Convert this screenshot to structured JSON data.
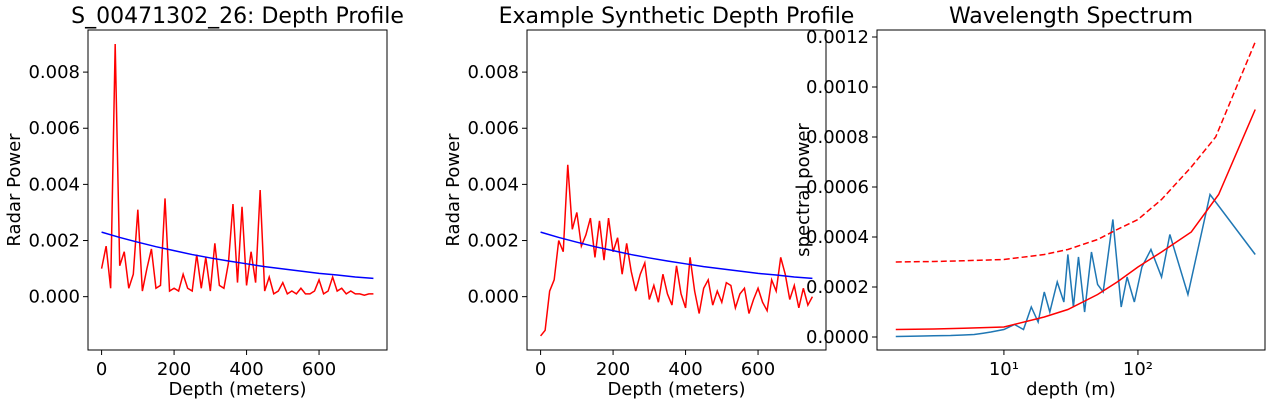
{
  "chart_data": [
    {
      "type": "line",
      "title": "S_00471302_26: Depth Profile",
      "xlabel": "Depth (meters)",
      "ylabel": "Radar Power",
      "xlim": [
        -37.5,
        787.5
      ],
      "xticks": [
        0,
        200,
        400,
        600
      ],
      "ylim": [
        -0.0019,
        0.0095
      ],
      "yticks": [
        {
          "value": 0,
          "label": "0.000"
        },
        {
          "value": 0.002,
          "label": "0.002"
        },
        {
          "value": 0.004,
          "label": "0.004"
        },
        {
          "value": 0.006,
          "label": "0.006"
        },
        {
          "value": 0.008,
          "label": "0.008"
        }
      ],
      "series": [
        {
          "color": "#ff0000",
          "x": [
            0,
            12.5,
            25,
            37.5,
            50,
            62.5,
            75,
            87.5,
            100,
            112.5,
            125,
            137.5,
            150,
            162.5,
            175,
            187.5,
            200,
            212.5,
            225,
            237.5,
            250,
            262.5,
            275,
            287.5,
            300,
            312.5,
            325,
            337.5,
            350,
            362.5,
            375,
            387.5,
            400,
            412.5,
            425,
            437.5,
            450,
            462.5,
            475,
            487.5,
            500,
            512.5,
            525,
            537.5,
            550,
            562.5,
            575,
            587.5,
            600,
            612.5,
            625,
            637.5,
            650,
            662.5,
            675,
            687.5,
            700,
            712.5,
            725,
            737.5,
            750
          ],
          "values": [
            0.001,
            0.0018,
            0.0003,
            0.009,
            0.0011,
            0.0016,
            0.0003,
            0.0008,
            0.0031,
            0.0002,
            0.001,
            0.0017,
            0.0003,
            0.0004,
            0.0035,
            0.0002,
            0.0003,
            0.0002,
            0.0008,
            0.0003,
            0.0002,
            0.0015,
            0.0003,
            0.0014,
            0.0002,
            0.0019,
            0.0004,
            0.0003,
            0.0012,
            0.0033,
            0.0005,
            0.0032,
            0.0004,
            0.0016,
            0.0005,
            0.0038,
            0.0002,
            0.0007,
            0.0001,
            0.0002,
            0.0005,
            0.0001,
            0.0002,
            0.0001,
            0.0003,
            0.0001,
            0.0001,
            0.0002,
            0.0006,
            0.0001,
            0.0002,
            0.0007,
            0.0002,
            0.0003,
            0.0001,
            0.0002,
            0.0001,
            0.0001,
            5e-05,
            0.0001,
            0.0001
          ]
        },
        {
          "color": "#0000ff",
          "x": [
            0,
            50,
            100,
            150,
            200,
            250,
            300,
            350,
            400,
            450,
            500,
            550,
            600,
            650,
            700,
            750
          ],
          "values": [
            0.0023,
            0.00211,
            0.00194,
            0.00178,
            0.00164,
            0.0015,
            0.00138,
            0.00127,
            0.00117,
            0.00107,
            0.00099,
            0.00091,
            0.00083,
            0.00077,
            0.0007,
            0.00065
          ]
        }
      ]
    },
    {
      "type": "line",
      "title": "Example Synthetic Depth Profile",
      "xlabel": "Depth (meters)",
      "ylabel": "Radar Power",
      "xlim": [
        -37.5,
        787.5
      ],
      "xticks": [
        0,
        200,
        400,
        600
      ],
      "ylim": [
        -0.0019,
        0.0095
      ],
      "yticks": [
        {
          "value": 0,
          "label": "0.000"
        },
        {
          "value": 0.002,
          "label": "0.002"
        },
        {
          "value": 0.004,
          "label": "0.004"
        },
        {
          "value": 0.006,
          "label": "0.006"
        },
        {
          "value": 0.008,
          "label": "0.008"
        }
      ],
      "series": [
        {
          "color": "#ff0000",
          "x": [
            0,
            12.5,
            25,
            37.5,
            50,
            62.5,
            75,
            87.5,
            100,
            112.5,
            125,
            137.5,
            150,
            162.5,
            175,
            187.5,
            200,
            212.5,
            225,
            237.5,
            250,
            262.5,
            275,
            287.5,
            300,
            312.5,
            325,
            337.5,
            350,
            362.5,
            375,
            387.5,
            400,
            412.5,
            425,
            437.5,
            450,
            462.5,
            475,
            487.5,
            500,
            512.5,
            525,
            537.5,
            550,
            562.5,
            575,
            587.5,
            600,
            612.5,
            625,
            637.5,
            650,
            662.5,
            675,
            687.5,
            700,
            712.5,
            725,
            737.5,
            750
          ],
          "values": [
            -0.0014,
            -0.0012,
            0.0002,
            0.0006,
            0.002,
            0.0016,
            0.0047,
            0.0024,
            0.003,
            0.0018,
            0.0022,
            0.0028,
            0.0014,
            0.0027,
            0.0013,
            0.0028,
            0.0016,
            0.0021,
            0.0008,
            0.0019,
            0.0009,
            0.0002,
            0.0008,
            0.0012,
            -0.0001,
            0.0004,
            -0.0002,
            0.0008,
            0.0001,
            -0.0003,
            0.0011,
            0.0001,
            -0.0004,
            0.0014,
            0.0002,
            -0.0006,
            0.0003,
            0.0006,
            -0.0003,
            0.0002,
            -0.0002,
            0.0005,
            0.0004,
            -0.0004,
            0.0001,
            0.0003,
            -0.0006,
            -0.0001,
            0.0003,
            -0.0002,
            -0.0005,
            0.0006,
            0.0002,
            0.0014,
            0.0008,
            -0.0001,
            0.0004,
            -0.0004,
            0.0003,
            -0.0003,
            0
          ]
        },
        {
          "color": "#0000ff",
          "x": [
            0,
            50,
            100,
            150,
            200,
            250,
            300,
            350,
            400,
            450,
            500,
            550,
            600,
            650,
            700,
            750
          ],
          "values": [
            0.0023,
            0.00211,
            0.00194,
            0.00178,
            0.00164,
            0.0015,
            0.00138,
            0.00127,
            0.00117,
            0.00107,
            0.00099,
            0.00091,
            0.00083,
            0.00077,
            0.0007,
            0.00065
          ]
        }
      ]
    },
    {
      "type": "line",
      "title": "Wavelength Spectrum",
      "xlabel": "depth (m)",
      "ylabel": "spectral power",
      "xscale": "log",
      "xlim": [
        1.13,
        887
      ],
      "xticks": [
        {
          "value": 10,
          "label": "10¹"
        },
        {
          "value": 100,
          "label": "10²"
        }
      ],
      "ylim": [
        -5.2e-05,
        0.001228
      ],
      "yticks": [
        {
          "value": 0,
          "label": "0.0000"
        },
        {
          "value": 0.0002,
          "label": "0.0002"
        },
        {
          "value": 0.0004,
          "label": "0.0004"
        },
        {
          "value": 0.0006,
          "label": "0.0006"
        },
        {
          "value": 0.0008,
          "label": "0.0008"
        },
        {
          "value": 0.001,
          "label": "0.0010"
        },
        {
          "value": 0.0012,
          "label": "0.0012"
        }
      ],
      "series": [
        {
          "color": "#1f77b4",
          "x": [
            1.56,
            2,
            2.5,
            3,
            4,
            5,
            6,
            7,
            8,
            10,
            12,
            14,
            16,
            18,
            20,
            22,
            25,
            28,
            30,
            33,
            36,
            40,
            45,
            50,
            55,
            60,
            65,
            75,
            83,
            94,
            107,
            125,
            150,
            173,
            236,
            345,
            750
          ],
          "values": [
            2e-06,
            3e-06,
            4e-06,
            5e-06,
            6e-06,
            8e-06,
            1e-05,
            1.5e-05,
            2e-05,
            3e-05,
            5e-05,
            3e-05,
            0.00012,
            6e-05,
            0.00018,
            0.0001,
            0.00022,
            0.00014,
            0.00033,
            0.00012,
            0.00032,
            0.0001,
            0.00034,
            0.00021,
            0.00018,
            0.00033,
            0.00047,
            0.00012,
            0.00024,
            0.00014,
            0.00028,
            0.00035,
            0.00024,
            0.00041,
            0.00017,
            0.00057,
            0.00033
          ]
        },
        {
          "color": "#ff0000",
          "x": [
            1.56,
            3,
            5,
            10,
            20,
            30,
            50,
            70,
            100,
            150,
            250,
            400,
            750
          ],
          "values": [
            3e-05,
            3.2e-05,
            3.5e-05,
            4e-05,
            8e-05,
            0.00011,
            0.00017,
            0.00022,
            0.00028,
            0.00034,
            0.00042,
            0.00057,
            0.00091
          ]
        },
        {
          "color": "#ff0000",
          "linestyle": "dashed",
          "x": [
            1.56,
            3,
            5,
            10,
            20,
            30,
            50,
            70,
            100,
            150,
            250,
            380,
            750
          ],
          "values": [
            0.0003,
            0.000302,
            0.000305,
            0.00031,
            0.00033,
            0.00035,
            0.00039,
            0.00043,
            0.00047,
            0.00055,
            0.00068,
            0.0008,
            0.00118
          ]
        }
      ]
    }
  ]
}
